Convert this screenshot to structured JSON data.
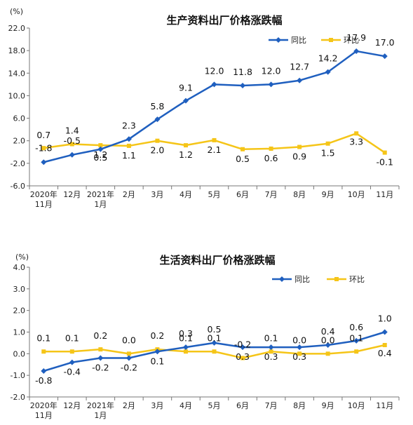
{
  "chart_data": [
    {
      "type": "line",
      "title": "生产资料出厂价格涨跌幅",
      "unit": "(%)",
      "categories": [
        "2020年\n11月",
        "12月",
        "2021年\n1月",
        "2月",
        "3月",
        "4月",
        "5月",
        "6月",
        "7月",
        "8月",
        "9月",
        "10月",
        "11月"
      ],
      "ylim": [
        -6.0,
        22.0
      ],
      "yticks": [
        "22.0",
        "18.0",
        "14.0",
        "10.0",
        "6.0",
        "2.0",
        "-2.0",
        "-6.0"
      ],
      "grid": false,
      "legend_position": "top-right",
      "series": [
        {
          "name": "同比",
          "color": "#1f5fbf",
          "values": [
            -1.8,
            -0.5,
            0.5,
            2.3,
            5.8,
            9.1,
            12.0,
            11.8,
            12.0,
            12.7,
            14.2,
            17.9,
            17.0
          ],
          "labels": [
            "-1.8",
            "-0.5",
            "0.5",
            "2.3",
            "5.8",
            "9.1",
            "12.0",
            "11.8",
            "12.0",
            "12.7",
            "14.2",
            "17.9",
            "17.0"
          ]
        },
        {
          "name": "环比",
          "color": "#f5c518",
          "values": [
            0.7,
            1.4,
            1.2,
            1.1,
            2.0,
            1.2,
            2.1,
            0.5,
            0.6,
            0.9,
            1.5,
            3.3,
            -0.1
          ],
          "labels": [
            "0.7",
            "1.4",
            "1.2",
            "1.1",
            "2.0",
            "1.2",
            "2.1",
            "0.5",
            "0.6",
            "0.9",
            "1.5",
            "3.3",
            "-0.1"
          ]
        }
      ]
    },
    {
      "type": "line",
      "title": "生活资料出厂价格涨跌幅",
      "unit": "(%)",
      "categories": [
        "2020年\n11月",
        "12月",
        "2021年\n1月",
        "2月",
        "3月",
        "4月",
        "5月",
        "6月",
        "7月",
        "8月",
        "9月",
        "10月",
        "11月"
      ],
      "ylim": [
        -2.0,
        4.0
      ],
      "yticks": [
        "4.0",
        "3.0",
        "2.0",
        "1.0",
        "0.0",
        "-1.0",
        "-2.0"
      ],
      "grid": false,
      "legend_position": "top-right",
      "series": [
        {
          "name": "同比",
          "color": "#1f5fbf",
          "values": [
            -0.8,
            -0.4,
            -0.2,
            -0.2,
            0.1,
            0.3,
            0.5,
            0.3,
            0.3,
            0.3,
            0.4,
            0.6,
            1.0
          ],
          "labels": [
            "-0.8",
            "-0.4",
            "-0.2",
            "-0.2",
            "0.1",
            "0.3",
            "0.5",
            "0.3",
            "0.3",
            "0.3",
            "0.4",
            "0.6",
            "1.0"
          ]
        },
        {
          "name": "环比",
          "color": "#f5c518",
          "values": [
            0.1,
            0.1,
            0.2,
            0.0,
            0.2,
            0.1,
            0.1,
            -0.2,
            0.1,
            0.0,
            0.0,
            0.1,
            0.4
          ],
          "labels": [
            "0.1",
            "0.1",
            "0.2",
            "0.0",
            "0.2",
            "0.1",
            "0.1",
            "-0.2",
            "0.1",
            "0.0",
            "0.0",
            "0.1",
            "0.4"
          ]
        }
      ]
    }
  ]
}
